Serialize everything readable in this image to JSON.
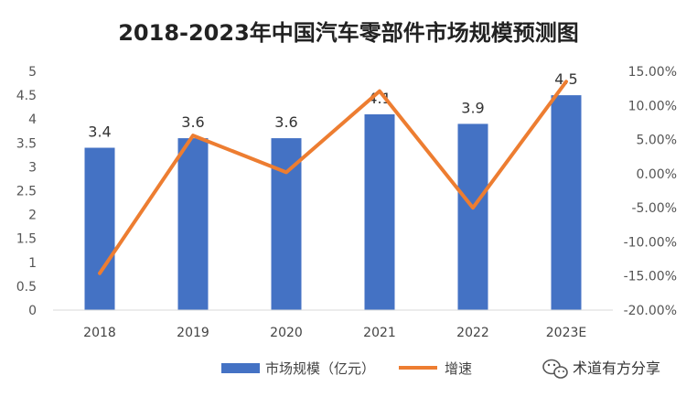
{
  "chart_data": {
    "type": "bar",
    "title": "2018-2023年中国汽车零部件市场规模预测图",
    "categories": [
      "2018",
      "2019",
      "2020",
      "2021",
      "2022",
      "2023E"
    ],
    "series": [
      {
        "name": "市场规模（亿元）",
        "type": "bar",
        "axis": "left",
        "color": "#4472C4",
        "values": [
          3.4,
          3.6,
          3.6,
          4.1,
          3.9,
          4.5
        ],
        "data_labels": [
          "3.4",
          "3.6",
          "3.6",
          "4.1",
          "3.9",
          "4.5"
        ]
      },
      {
        "name": "增速",
        "type": "line",
        "axis": "right",
        "color": "#ED7D31",
        "values": [
          -14.6,
          5.6,
          0.2,
          12.1,
          -5.0,
          13.5
        ]
      }
    ],
    "y_left": {
      "ylim": [
        0,
        5
      ],
      "ticks": [
        "0",
        "0.5",
        "1",
        "1.5",
        "2",
        "2.5",
        "3",
        "3.5",
        "4",
        "4.5",
        "5"
      ]
    },
    "y_right": {
      "ylim": [
        -20,
        15
      ],
      "ticks": [
        "-20.00%",
        "-15.00%",
        "-10.00%",
        "-5.00%",
        "0.00%",
        "5.00%",
        "10.00%",
        "15.00%"
      ]
    },
    "grid": false,
    "legend": "bottom"
  },
  "watermark": {
    "icon": "wechat-icon",
    "text": "术道有方分享"
  }
}
